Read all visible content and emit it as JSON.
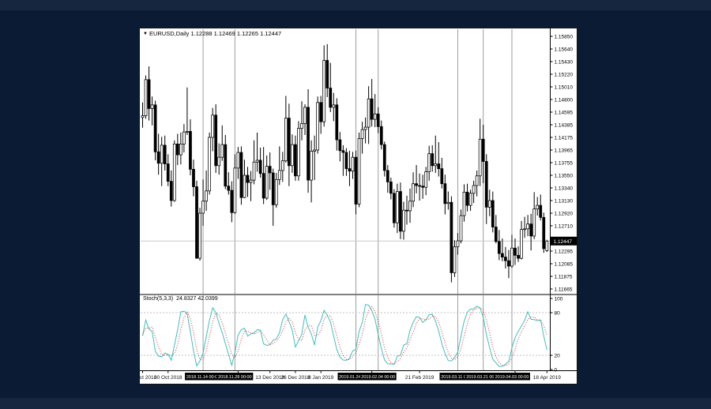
{
  "window": {
    "marker": "▼",
    "symbol_period": "EURUSD,Daily",
    "ohlc_text": "1.12288 1.12469 1.12265 1.12447"
  },
  "price_axis": {
    "ticks": [
      "1.15850",
      "1.15640",
      "1.15430",
      "1.15220",
      "1.15010",
      "1.14800",
      "1.14595",
      "1.14385",
      "1.14175",
      "1.13965",
      "1.13755",
      "1.13550",
      "1.13340",
      "1.13130",
      "1.12920",
      "1.12710",
      "1.12500",
      "1.12295",
      "1.12085",
      "1.11875",
      "1.11665"
    ],
    "current_price": "1.12447"
  },
  "time_axis": {
    "labels": [
      {
        "text": "18 Oct 2018",
        "bar": 0
      },
      {
        "text": "30 Oct 2018",
        "bar": 8
      },
      {
        "text": "29 Nov 2018",
        "bar": 30
      },
      {
        "text": "13 Dec 2018",
        "bar": 40
      },
      {
        "text": "26 Dec 2018",
        "bar": 48
      },
      {
        "text": "8 Jan 2019",
        "bar": 56
      },
      {
        "text": "31 Jan 2019",
        "bar": 72
      },
      {
        "text": "21 Feb 2019",
        "bar": 87
      },
      {
        "text": "4 Apr 2019",
        "bar": 117
      },
      {
        "text": "18 Apr 2019",
        "bar": 127
      }
    ],
    "separators": [
      {
        "text": "2018.11.14 00:00",
        "bar": 19
      },
      {
        "text": "2018.11.28 00:00",
        "bar": 29
      },
      {
        "text": "2019.01.24 00:00",
        "bar": 67
      },
      {
        "text": "2019.02.04 00:00",
        "bar": 74
      },
      {
        "text": "2019.03.11 00:00",
        "bar": 99
      },
      {
        "text": "2019.03.21 00:00",
        "bar": 107
      },
      {
        "text": "2019.04.03 00:00",
        "bar": 116
      }
    ]
  },
  "indicator": {
    "name": "Stoch(5,3,3)",
    "values": "24.8327 42.0399",
    "scale": [
      {
        "label": "100",
        "value": 100
      },
      {
        "label": "80",
        "value": 80
      },
      {
        "label": "20",
        "value": 20
      },
      {
        "label": "0",
        "value": 0
      }
    ],
    "levels": [
      80,
      20
    ]
  },
  "colors": {
    "desktop_bg": "#0a1b33",
    "desktop_strip": "#16263e",
    "chart_bg": "#ffffff",
    "candle_outline": "#000000",
    "candle_up_fill": "#ffffff",
    "candle_down_fill": "#000000",
    "grid_separator_line": "#9e9e9e",
    "bid_line": "#c8c8c8",
    "stoch_k": "#3fbfbf",
    "stoch_d": "#e23030",
    "level_dash": "#c0c0c0",
    "axis_text": "#000000",
    "date_box_bg": "#000000",
    "date_box_text": "#ffffff",
    "price_tag_bg": "#000000",
    "price_tag_text": "#ffffff",
    "pane_divider": "#808080"
  },
  "chart_data": {
    "type": "candlestick+stochastic",
    "symbol": "EURUSD",
    "timeframe": "Daily",
    "today_ohlc": {
      "open": 1.12288,
      "high": 1.12469,
      "low": 1.12265,
      "close": 1.12447
    },
    "price_scale": {
      "top_tick": 1.1585,
      "tick_step": 0.0021,
      "tick_count": 21,
      "bottom_tick": 1.11665
    },
    "stoch_params": [
      5,
      3,
      3
    ],
    "stoch_current": {
      "main_k": 24.8327,
      "signal_d": 42.0399
    },
    "stoch_scale": {
      "min": 0,
      "max": 100,
      "levels": [
        20,
        80
      ]
    },
    "candles": [
      [
        1.145,
        1.1475,
        1.1433,
        1.1453
      ],
      [
        1.1453,
        1.152,
        1.1448,
        1.1513
      ],
      [
        1.1513,
        1.1535,
        1.1445,
        1.1465
      ],
      [
        1.1465,
        1.1485,
        1.1437,
        1.1471
      ],
      [
        1.1471,
        1.1478,
        1.1379,
        1.1393
      ],
      [
        1.1393,
        1.1423,
        1.1355,
        1.1374
      ],
      [
        1.1374,
        1.1418,
        1.1336,
        1.1404
      ],
      [
        1.1404,
        1.142,
        1.1362,
        1.1373
      ],
      [
        1.1373,
        1.1389,
        1.1336,
        1.1344
      ],
      [
        1.1344,
        1.1362,
        1.1302,
        1.1312
      ],
      [
        1.1312,
        1.1412,
        1.131,
        1.1406
      ],
      [
        1.1406,
        1.1423,
        1.1371,
        1.1388
      ],
      [
        1.1388,
        1.1425,
        1.1372,
        1.1406
      ],
      [
        1.1406,
        1.1439,
        1.1392,
        1.1426
      ],
      [
        1.1426,
        1.15,
        1.1421,
        1.1427
      ],
      [
        1.1427,
        1.1447,
        1.1354,
        1.1364
      ],
      [
        1.1364,
        1.138,
        1.1319,
        1.1335
      ],
      [
        1.1335,
        1.1345,
        1.1216,
        1.1216
      ],
      [
        1.1216,
        1.13,
        1.1212,
        1.1291
      ],
      [
        1.1291,
        1.1347,
        1.127,
        1.1311
      ],
      [
        1.1311,
        1.1362,
        1.1295,
        1.1328
      ],
      [
        1.1328,
        1.1425,
        1.1322,
        1.1417
      ],
      [
        1.1417,
        1.1466,
        1.1394,
        1.1454
      ],
      [
        1.1454,
        1.1472,
        1.1358,
        1.137
      ],
      [
        1.137,
        1.1407,
        1.1355,
        1.1384
      ],
      [
        1.1384,
        1.1437,
        1.1378,
        1.1405
      ],
      [
        1.1405,
        1.1421,
        1.1331,
        1.1336
      ],
      [
        1.1336,
        1.1359,
        1.1322,
        1.1329
      ],
      [
        1.1329,
        1.1344,
        1.1276,
        1.1292
      ],
      [
        1.1292,
        1.1389,
        1.129,
        1.1366
      ],
      [
        1.1366,
        1.1401,
        1.1348,
        1.1392
      ],
      [
        1.1392,
        1.1402,
        1.1305,
        1.1317
      ],
      [
        1.1317,
        1.138,
        1.1316,
        1.1354
      ],
      [
        1.1354,
        1.1368,
        1.1318,
        1.1342
      ],
      [
        1.1342,
        1.1361,
        1.1311,
        1.1346
      ],
      [
        1.1346,
        1.1412,
        1.1339,
        1.1376
      ],
      [
        1.1376,
        1.1425,
        1.136,
        1.1379
      ],
      [
        1.1379,
        1.14,
        1.135,
        1.1357
      ],
      [
        1.1357,
        1.1401,
        1.1306,
        1.1316
      ],
      [
        1.1316,
        1.1387,
        1.1313,
        1.1369
      ],
      [
        1.1369,
        1.1392,
        1.133,
        1.1358
      ],
      [
        1.1358,
        1.1365,
        1.127,
        1.1305
      ],
      [
        1.1305,
        1.1358,
        1.13,
        1.1347
      ],
      [
        1.1347,
        1.1402,
        1.1338,
        1.1362
      ],
      [
        1.1362,
        1.1393,
        1.1343,
        1.1378
      ],
      [
        1.1378,
        1.1486,
        1.1375,
        1.1449
      ],
      [
        1.1449,
        1.1473,
        1.1336,
        1.137
      ],
      [
        1.137,
        1.1422,
        1.1358,
        1.1405
      ],
      [
        1.1405,
        1.142,
        1.1345,
        1.1353
      ],
      [
        1.1353,
        1.1444,
        1.1345,
        1.1432
      ],
      [
        1.1432,
        1.1477,
        1.1412,
        1.144
      ],
      [
        1.144,
        1.1472,
        1.1421,
        1.1467
      ],
      [
        1.1467,
        1.1497,
        1.1325,
        1.1346
      ],
      [
        1.1346,
        1.1412,
        1.1309,
        1.1394
      ],
      [
        1.1394,
        1.142,
        1.1346,
        1.1396
      ],
      [
        1.1396,
        1.1485,
        1.139,
        1.1475
      ],
      [
        1.1475,
        1.1486,
        1.1423,
        1.1443
      ],
      [
        1.1443,
        1.157,
        1.1435,
        1.1545
      ],
      [
        1.1545,
        1.1572,
        1.1484,
        1.1499
      ],
      [
        1.1499,
        1.1541,
        1.1459,
        1.1467
      ],
      [
        1.1467,
        1.1491,
        1.1444,
        1.1471
      ],
      [
        1.1471,
        1.1482,
        1.1395,
        1.1413
      ],
      [
        1.1413,
        1.1426,
        1.1377,
        1.1395
      ],
      [
        1.1395,
        1.1404,
        1.1353,
        1.1392
      ],
      [
        1.1392,
        1.1399,
        1.1353,
        1.1365
      ],
      [
        1.1365,
        1.1395,
        1.1336,
        1.1361
      ],
      [
        1.1361,
        1.1393,
        1.1348,
        1.1384
      ],
      [
        1.1384,
        1.1395,
        1.1289,
        1.1306
      ],
      [
        1.1306,
        1.1425,
        1.1301,
        1.1415
      ],
      [
        1.1415,
        1.1443,
        1.139,
        1.143
      ],
      [
        1.143,
        1.145,
        1.1407,
        1.1434
      ],
      [
        1.1434,
        1.1502,
        1.1406,
        1.1481
      ],
      [
        1.1481,
        1.1514,
        1.1435,
        1.1447
      ],
      [
        1.1447,
        1.1489,
        1.1434,
        1.1456
      ],
      [
        1.1456,
        1.1467,
        1.1424,
        1.1435
      ],
      [
        1.1435,
        1.1445,
        1.1397,
        1.1405
      ],
      [
        1.1405,
        1.141,
        1.1352,
        1.1362
      ],
      [
        1.1362,
        1.1371,
        1.1325,
        1.1343
      ],
      [
        1.1343,
        1.135,
        1.1314,
        1.1324
      ],
      [
        1.1324,
        1.1331,
        1.1267,
        1.1275
      ],
      [
        1.1275,
        1.134,
        1.1258,
        1.1327
      ],
      [
        1.1327,
        1.1342,
        1.1248,
        1.1261
      ],
      [
        1.1261,
        1.131,
        1.1247,
        1.1296
      ],
      [
        1.1296,
        1.132,
        1.1272,
        1.1295
      ],
      [
        1.1295,
        1.1332,
        1.1275,
        1.1311
      ],
      [
        1.1311,
        1.1359,
        1.1301,
        1.134
      ],
      [
        1.134,
        1.1371,
        1.1324,
        1.1337
      ],
      [
        1.1337,
        1.1357,
        1.1312,
        1.1336
      ],
      [
        1.1336,
        1.1355,
        1.1315,
        1.1334
      ],
      [
        1.1334,
        1.1368,
        1.1321,
        1.136
      ],
      [
        1.136,
        1.1403,
        1.1345,
        1.139
      ],
      [
        1.139,
        1.1404,
        1.136,
        1.137
      ],
      [
        1.137,
        1.142,
        1.1358,
        1.1373
      ],
      [
        1.1373,
        1.1409,
        1.1352,
        1.1365
      ],
      [
        1.1365,
        1.1383,
        1.1332,
        1.134
      ],
      [
        1.134,
        1.1355,
        1.1289,
        1.1307
      ],
      [
        1.1307,
        1.1327,
        1.1297,
        1.1309
      ],
      [
        1.1309,
        1.1319,
        1.1176,
        1.1192
      ],
      [
        1.1192,
        1.1246,
        1.1185,
        1.1235
      ],
      [
        1.1235,
        1.1258,
        1.1222,
        1.1245
      ],
      [
        1.1245,
        1.1297,
        1.1241,
        1.1287
      ],
      [
        1.1287,
        1.1339,
        1.1277,
        1.1326
      ],
      [
        1.1326,
        1.134,
        1.1294,
        1.1304
      ],
      [
        1.1304,
        1.133,
        1.1295,
        1.1324
      ],
      [
        1.1324,
        1.1345,
        1.1308,
        1.1337
      ],
      [
        1.1337,
        1.1362,
        1.1319,
        1.1353
      ],
      [
        1.1353,
        1.1448,
        1.1336,
        1.1414
      ],
      [
        1.1414,
        1.1438,
        1.1341,
        1.1377
      ],
      [
        1.1377,
        1.1389,
        1.1273,
        1.1301
      ],
      [
        1.1301,
        1.133,
        1.1286,
        1.1312
      ],
      [
        1.1312,
        1.1327,
        1.1259,
        1.1268
      ],
      [
        1.1268,
        1.1288,
        1.1241,
        1.1244
      ],
      [
        1.1244,
        1.1263,
        1.1213,
        1.1224
      ],
      [
        1.1224,
        1.1249,
        1.1211,
        1.1218
      ],
      [
        1.1218,
        1.1235,
        1.1199,
        1.1212
      ],
      [
        1.1212,
        1.123,
        1.1183,
        1.1203
      ],
      [
        1.1203,
        1.1255,
        1.12,
        1.1233
      ],
      [
        1.1233,
        1.1249,
        1.1205,
        1.1221
      ],
      [
        1.1221,
        1.1236,
        1.121,
        1.1216
      ],
      [
        1.1216,
        1.1278,
        1.1214,
        1.1264
      ],
      [
        1.1264,
        1.1285,
        1.125,
        1.1265
      ],
      [
        1.1265,
        1.1288,
        1.1253,
        1.1273
      ],
      [
        1.1273,
        1.129,
        1.1229,
        1.1253
      ],
      [
        1.1253,
        1.1326,
        1.1248,
        1.1298
      ],
      [
        1.1298,
        1.1318,
        1.1287,
        1.1304
      ],
      [
        1.1304,
        1.1322,
        1.1279,
        1.1284
      ],
      [
        1.1284,
        1.1292,
        1.1225,
        1.1232
      ],
      [
        1.12288,
        1.12469,
        1.12265,
        1.12447
      ]
    ]
  }
}
